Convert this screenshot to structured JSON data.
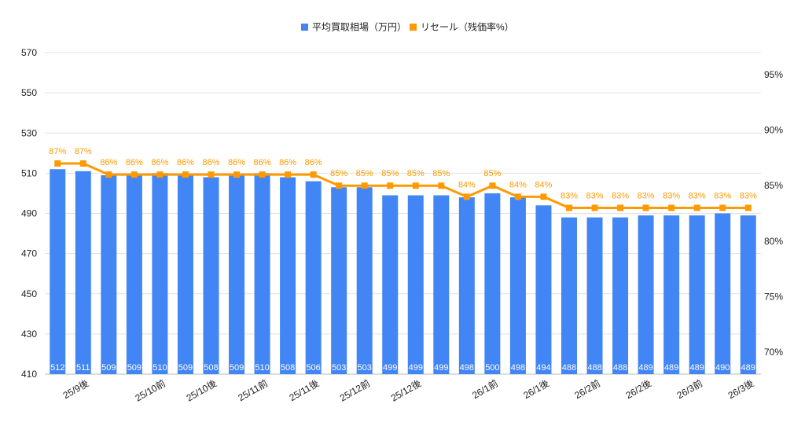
{
  "chart_data": {
    "type": "bar",
    "title": "",
    "legend": {
      "placement": "top",
      "entries": [
        "平均買取相場（万円）",
        "リセール（残価率%）"
      ]
    },
    "categories": [
      "",
      "25/9後",
      "",
      "",
      "25/10前",
      "",
      "25/10後",
      "",
      "25/11前",
      "",
      "25/11後",
      "",
      "25/12前",
      "",
      "25/12後",
      "",
      "",
      "26/1前",
      "",
      "26/1後",
      "",
      "26/2前",
      "",
      "26/2後",
      "",
      "26/3前",
      "",
      "26/3後"
    ],
    "series": [
      {
        "name": "平均買取相場（万円）",
        "type": "bar",
        "axis": "left",
        "color": "#4285F4",
        "values": [
          512,
          511,
          509,
          509,
          510,
          509,
          508,
          509,
          510,
          508,
          506,
          503,
          503,
          499,
          499,
          499,
          498,
          500,
          498,
          494,
          488,
          488,
          488,
          489,
          489,
          489,
          490,
          489
        ]
      },
      {
        "name": "リセール（残価率%）",
        "type": "line",
        "axis": "right",
        "color": "#FF9900",
        "values": [
          87,
          87,
          86,
          86,
          86,
          86,
          86,
          86,
          86,
          86,
          86,
          85,
          85,
          85,
          85,
          85,
          84,
          85,
          84,
          84,
          83,
          83,
          83,
          83,
          83,
          83,
          83,
          83
        ]
      }
    ],
    "left_axis": {
      "min": 410,
      "max": 570,
      "ticks": [
        "410",
        "430",
        "450",
        "470",
        "490",
        "510",
        "530",
        "550",
        "570"
      ]
    },
    "right_axis": {
      "min": 68,
      "max": 97,
      "ticks": [
        "70%",
        "75%",
        "80%",
        "85%",
        "90%",
        "95%"
      ]
    },
    "grid": true
  }
}
